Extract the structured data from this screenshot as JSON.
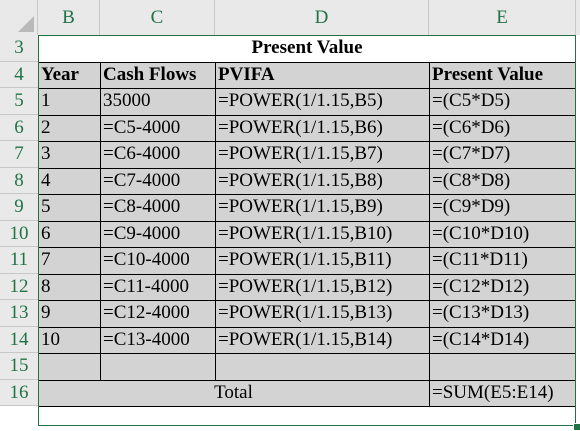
{
  "columns": [
    "B",
    "C",
    "D",
    "E"
  ],
  "rows": [
    "3",
    "4",
    "5",
    "6",
    "7",
    "8",
    "9",
    "10",
    "11",
    "12",
    "13",
    "14",
    "15",
    "16"
  ],
  "title": "Present Value",
  "headers": {
    "year": "Year",
    "cash_flows": "Cash Flows",
    "pvifa": "PVIFA",
    "present_value": "Present Value"
  },
  "data_rows": [
    {
      "year": "1",
      "cash": "35000",
      "pvifa": "=POWER(1/1.15,B5)",
      "pv": "=(C5*D5)"
    },
    {
      "year": "2",
      "cash": "=C5-4000",
      "pvifa": "=POWER(1/1.15,B6)",
      "pv": "=(C6*D6)"
    },
    {
      "year": "3",
      "cash": "=C6-4000",
      "pvifa": "=POWER(1/1.15,B7)",
      "pv": "=(C7*D7)"
    },
    {
      "year": "4",
      "cash": "=C7-4000",
      "pvifa": "=POWER(1/1.15,B8)",
      "pv": "=(C8*D8)"
    },
    {
      "year": "5",
      "cash": "=C8-4000",
      "pvifa": "=POWER(1/1.15,B9)",
      "pv": "=(C9*D9)"
    },
    {
      "year": "6",
      "cash": "=C9-4000",
      "pvifa": "=POWER(1/1.15,B10)",
      "pv": "=(C10*D10)"
    },
    {
      "year": "7",
      "cash": "=C10-4000",
      "pvifa": "=POWER(1/1.15,B11)",
      "pv": "=(C11*D11)"
    },
    {
      "year": "8",
      "cash": "=C11-4000",
      "pvifa": "=POWER(1/1.15,B12)",
      "pv": "=(C12*D12)"
    },
    {
      "year": "9",
      "cash": "=C12-4000",
      "pvifa": "=POWER(1/1.15,B13)",
      "pv": "=(C13*D13)"
    },
    {
      "year": "10",
      "cash": "=C13-4000",
      "pvifa": "=POWER(1/1.15,B14)",
      "pv": "=(C14*D14)"
    }
  ],
  "total_label": "Total",
  "total_formula": "=SUM(E5:E14)",
  "colors": {
    "header_bg": "#e9e9e9",
    "header_text": "#217346",
    "cell_fill": "#d3d3d3",
    "selection": "#217346"
  }
}
